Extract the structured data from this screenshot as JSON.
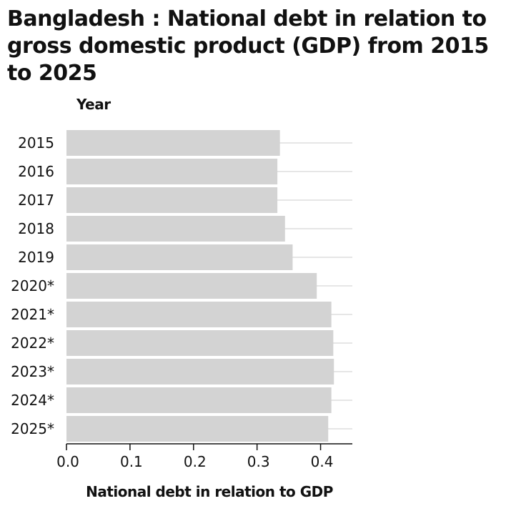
{
  "title": "Bangladesh : National debt in relation to gross domestic product (GDP) from 2015 to 2025",
  "colors": {
    "bar": "#d3d3d3",
    "grid": "#cccccc",
    "axis": "#111111",
    "text": "#111111"
  },
  "chart_data": {
    "type": "bar",
    "orientation": "horizontal",
    "title": "Bangladesh : National debt in relation to gross domestic product (GDP) from 2015 to 2025",
    "xlabel": "National debt in relation to GDP",
    "ylabel": "Year",
    "categories": [
      "2015",
      "2016",
      "2017",
      "2018",
      "2019",
      "2020*",
      "2021*",
      "2022*",
      "2023*",
      "2024*",
      "2025*"
    ],
    "values": [
      0.336,
      0.332,
      0.332,
      0.344,
      0.356,
      0.394,
      0.417,
      0.42,
      0.421,
      0.417,
      0.412
    ],
    "xlim": [
      0,
      0.45
    ],
    "xticks": [
      0.0,
      0.1,
      0.2,
      0.3,
      0.4
    ],
    "xtick_labels": [
      "0.0",
      "0.1",
      "0.2",
      "0.3",
      "0.4"
    ],
    "grid": "horizontal-lines",
    "legend": "none"
  }
}
